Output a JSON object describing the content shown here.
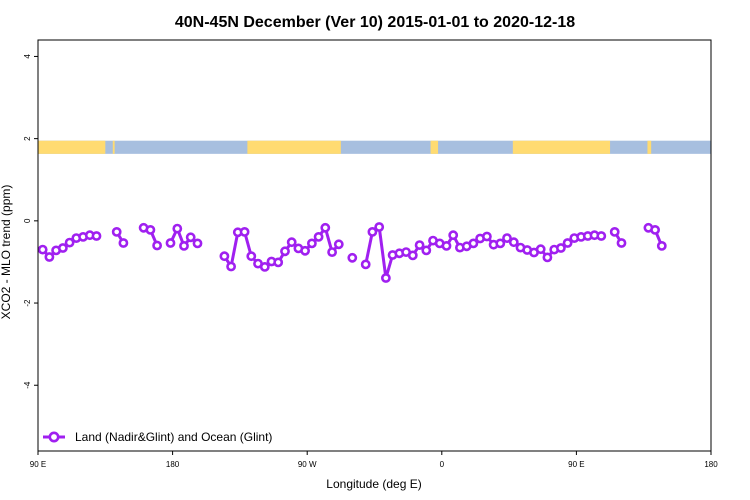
{
  "chart_data": {
    "type": "line",
    "title": "40N-45N December (Ver 10)   2015-01-01 to 2020-12-18",
    "xlabel": "Longitude (deg E)",
    "ylabel": "XCO2 - MLO trend (ppm)",
    "xlim": [
      90,
      450
    ],
    "ylim": [
      -5.6,
      4.4
    ],
    "x_ticks": [
      {
        "value": 90,
        "label": "90 E"
      },
      {
        "value": 162,
        "label": "180"
      },
      {
        "value": 234,
        "label": "90 W"
      },
      {
        "value": 306,
        "label": "0"
      },
      {
        "value": 378,
        "label": "90 E"
      },
      {
        "value": 450,
        "label": "180"
      }
    ],
    "y_ticks": [
      {
        "value": -4,
        "label": "-4"
      },
      {
        "value": -2,
        "label": "-2"
      },
      {
        "value": 0,
        "label": "0"
      },
      {
        "value": 2,
        "label": "2"
      },
      {
        "value": 4,
        "label": "4"
      }
    ],
    "grid": false,
    "legend_position": "bottom-left",
    "series": [
      {
        "name": "Land (Nadir&Glint) and Ocean (Glint)",
        "color": "#a020f0",
        "segments": [
          [
            [
              92.5,
              -0.7
            ],
            [
              96.1,
              -0.88
            ],
            [
              99.7,
              -0.72
            ],
            [
              103.3,
              -0.66
            ],
            [
              106.9,
              -0.53
            ],
            [
              110.5,
              -0.42
            ],
            [
              114.1,
              -0.39
            ],
            [
              117.7,
              -0.35
            ],
            [
              121.3,
              -0.37
            ]
          ],
          [
            [
              132.1,
              -0.27
            ],
            [
              135.7,
              -0.54
            ]
          ],
          [
            [
              146.5,
              -0.17
            ],
            [
              150.1,
              -0.22
            ],
            [
              153.7,
              -0.6
            ]
          ],
          [
            [
              160.9,
              -0.54
            ],
            [
              164.5,
              -0.19
            ],
            [
              168.1,
              -0.61
            ],
            [
              171.7,
              -0.4
            ],
            [
              175.3,
              -0.55
            ]
          ],
          [
            [
              189.7,
              -0.86
            ],
            [
              193.3,
              -1.11
            ],
            [
              196.9,
              -0.28
            ],
            [
              200.5,
              -0.27
            ],
            [
              204.1,
              -0.86
            ],
            [
              207.7,
              -1.04
            ],
            [
              211.3,
              -1.12
            ],
            [
              214.9,
              -0.99
            ],
            [
              218.5,
              -1.01
            ],
            [
              222.1,
              -0.74
            ],
            [
              225.7,
              -0.52
            ],
            [
              229.3,
              -0.67
            ],
            [
              232.9,
              -0.73
            ],
            [
              236.5,
              -0.55
            ],
            [
              240.1,
              -0.39
            ],
            [
              243.7,
              -0.17
            ],
            [
              247.3,
              -0.76
            ],
            [
              250.9,
              -0.57
            ]
          ],
          [
            [
              258.1,
              -0.9
            ]
          ],
          [
            [
              265.3,
              -1.06
            ],
            [
              268.9,
              -0.27
            ],
            [
              272.5,
              -0.15
            ],
            [
              276.1,
              -1.39
            ],
            [
              279.7,
              -0.83
            ],
            [
              283.3,
              -0.79
            ],
            [
              286.9,
              -0.76
            ],
            [
              290.5,
              -0.84
            ],
            [
              294.1,
              -0.59
            ],
            [
              297.7,
              -0.72
            ],
            [
              301.3,
              -0.48
            ],
            [
              304.9,
              -0.55
            ],
            [
              308.5,
              -0.61
            ],
            [
              312.1,
              -0.35
            ],
            [
              315.7,
              -0.65
            ],
            [
              319.3,
              -0.62
            ],
            [
              322.9,
              -0.55
            ],
            [
              326.5,
              -0.43
            ],
            [
              330.1,
              -0.38
            ],
            [
              333.7,
              -0.58
            ],
            [
              337.3,
              -0.55
            ],
            [
              340.9,
              -0.42
            ],
            [
              344.5,
              -0.52
            ],
            [
              348.1,
              -0.65
            ],
            [
              351.7,
              -0.71
            ],
            [
              355.3,
              -0.77
            ],
            [
              358.9,
              -0.69
            ],
            [
              362.5,
              -0.89
            ],
            [
              366.1,
              -0.7
            ],
            [
              369.7,
              -0.66
            ],
            [
              373.3,
              -0.54
            ],
            [
              376.9,
              -0.42
            ],
            [
              380.5,
              -0.39
            ],
            [
              384.1,
              -0.37
            ],
            [
              387.7,
              -0.35
            ],
            [
              391.3,
              -0.37
            ]
          ],
          [
            [
              398.5,
              -0.27
            ],
            [
              402.1,
              -0.54
            ]
          ],
          [
            [
              416.5,
              -0.17
            ],
            [
              420.1,
              -0.22
            ],
            [
              423.7,
              -0.61
            ]
          ]
        ]
      }
    ],
    "surface_band": {
      "y_range": [
        1.63,
        1.95
      ],
      "colors": {
        "land": "#ffdb71",
        "ocean": "#a7bfdf"
      },
      "land_lon_ranges": [
        [
          90,
          126
        ],
        [
          130,
          131
        ],
        [
          202,
          252
        ],
        [
          300,
          304
        ],
        [
          344,
          396
        ],
        [
          416,
          418
        ]
      ]
    }
  }
}
